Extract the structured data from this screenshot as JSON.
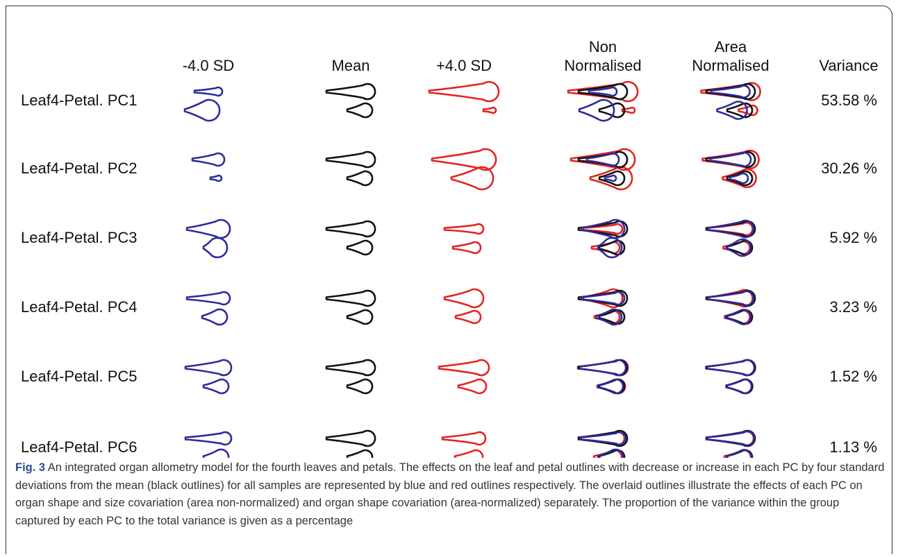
{
  "table": {
    "headers": [
      "-4.0 SD",
      "Mean",
      "+4.0 SD",
      "Non Normalised",
      "Area Normalised",
      "Variance"
    ],
    "rows": [
      [
        "Leaf4-Petal. PC1",
        "53.58 %"
      ],
      [
        "Leaf4-Petal. PC2",
        "30.26 %"
      ],
      [
        "Leaf4-Petal. PC3",
        "5.92 %"
      ],
      [
        "Leaf4-Petal. PC4",
        "3.23 %"
      ],
      [
        "Leaf4-Petal. PC5",
        "1.52 %"
      ],
      [
        "Leaf4-Petal. PC6",
        "1.13 %"
      ]
    ]
  },
  "caption": {
    "label": "Fig. 3",
    "text": "An integrated organ allometry model for the fourth leaves and petals. The effects on the leaf and petal outlines with decrease or increase in each PC by four standard deviations from the mean (black outlines) for all samples are represented by blue and red outlines respectively. The overlaid outlines illustrate the effects of each PC on organ shape and size covariation (area non-normalized) and organ shape covariation (area-normalized) separately. The proportion of the variance within the group captured by each PC to the total variance is given as a percentage"
  }
}
